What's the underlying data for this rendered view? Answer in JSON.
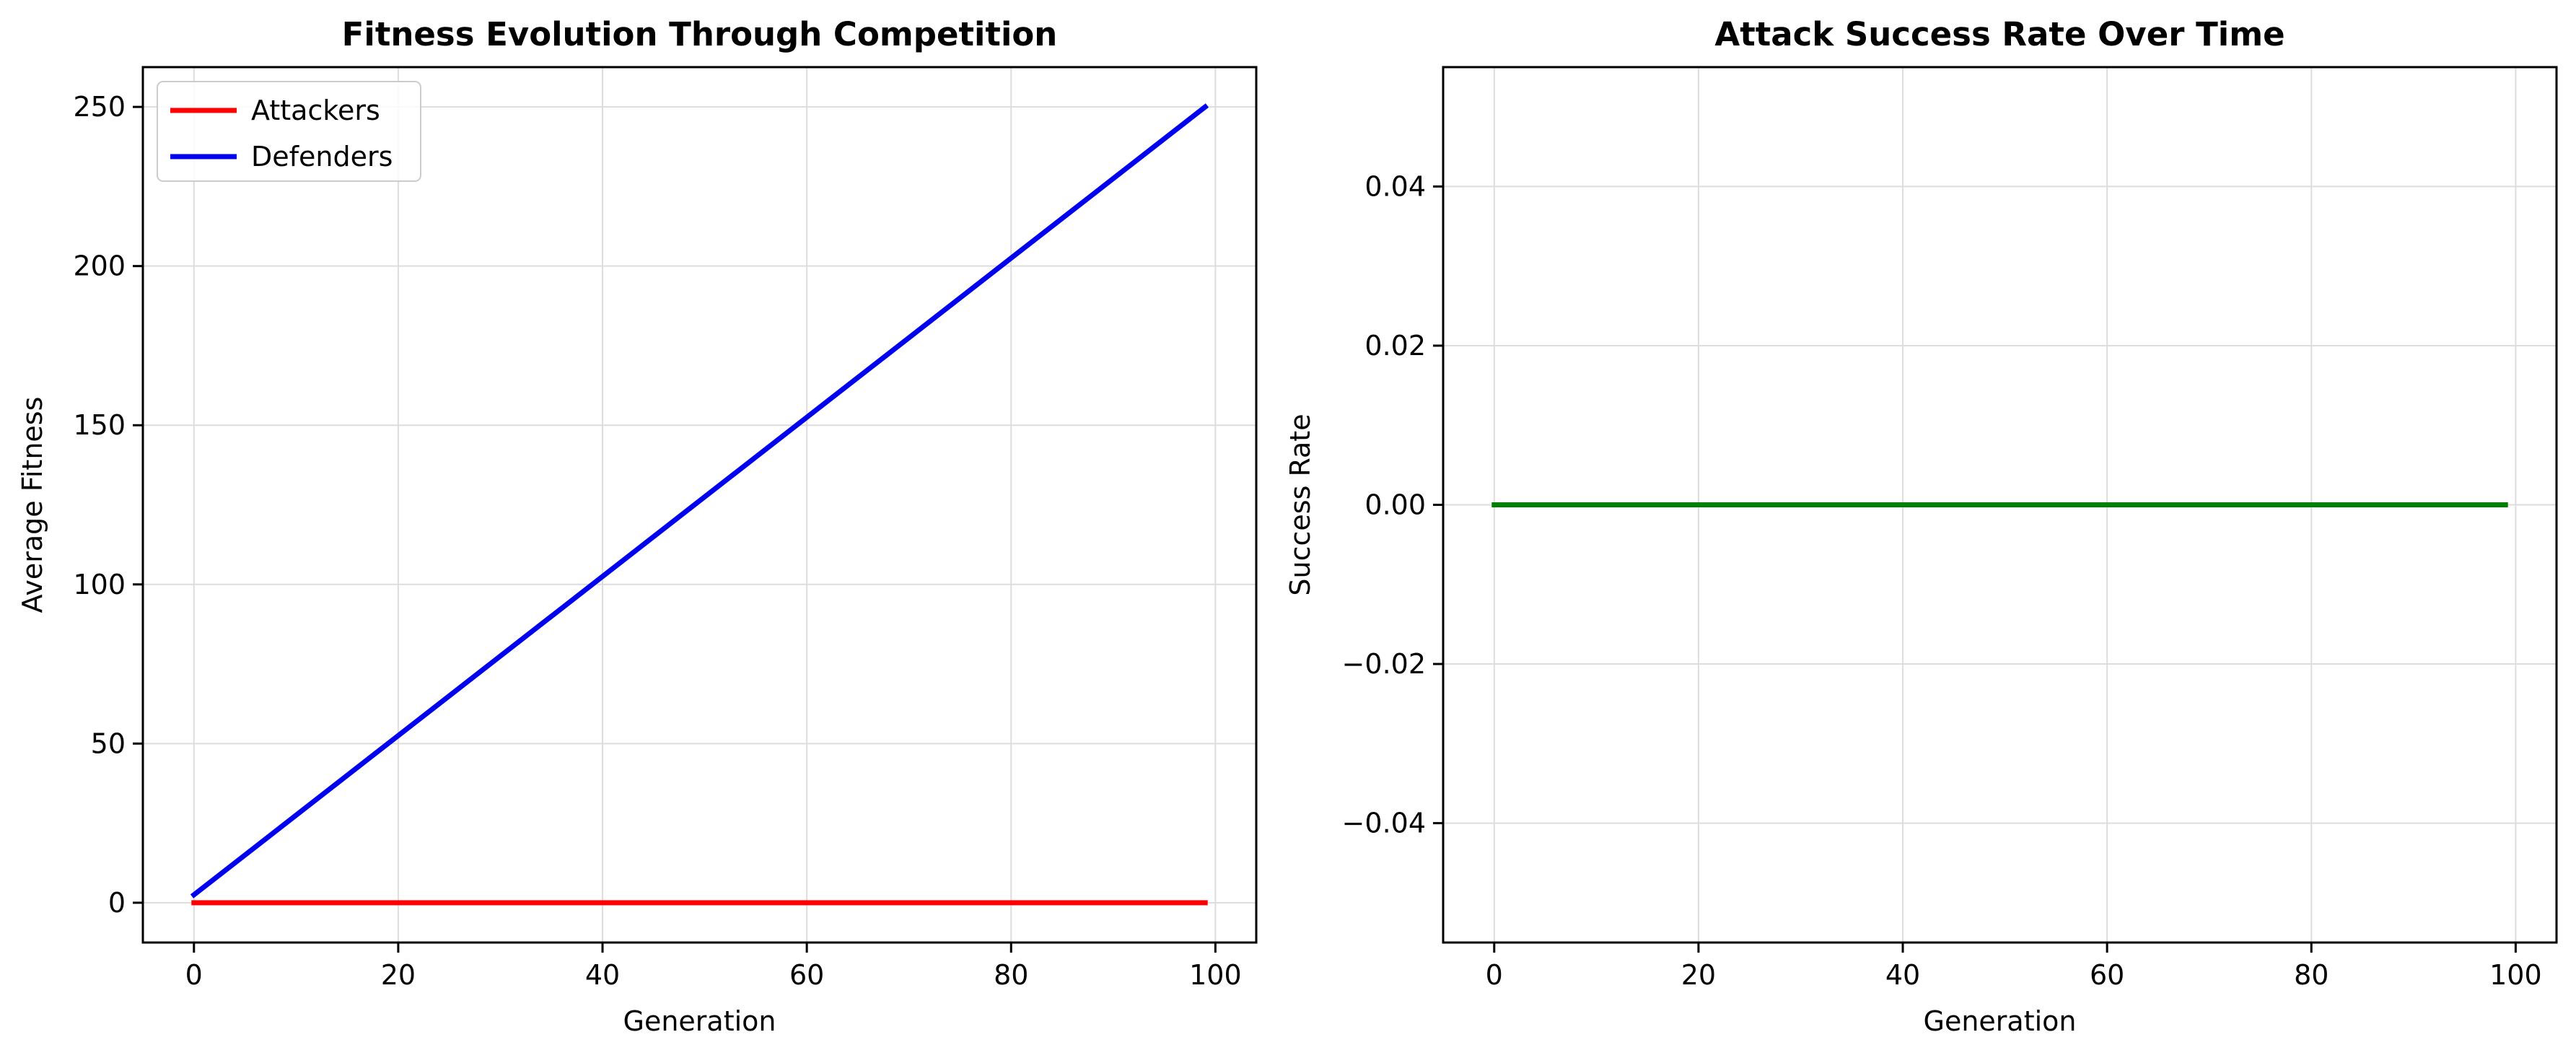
{
  "chart_data": [
    {
      "type": "line",
      "title": "Fitness Evolution Through Competition",
      "xlabel": "Generation",
      "ylabel": "Average Fitness",
      "xlim": [
        -5,
        104
      ],
      "ylim": [
        -12.5,
        262.5
      ],
      "xticks": [
        0,
        20,
        40,
        60,
        80,
        100
      ],
      "yticks": [
        0,
        50,
        100,
        150,
        200,
        250
      ],
      "xtick_labels": [
        "0",
        "20",
        "40",
        "60",
        "80",
        "100"
      ],
      "ytick_labels": [
        "0",
        "50",
        "100",
        "150",
        "200",
        "250"
      ],
      "grid": true,
      "legend": "top-left",
      "series": [
        {
          "name": "Attackers",
          "color": "#ff0000",
          "x": [
            0,
            99
          ],
          "y": [
            0,
            0
          ]
        },
        {
          "name": "Defenders",
          "color": "#0000ee",
          "x": [
            0,
            99
          ],
          "y": [
            2.5,
            250
          ]
        }
      ]
    },
    {
      "type": "line",
      "title": "Attack Success Rate Over Time",
      "xlabel": "Generation",
      "ylabel": "Success Rate",
      "xlim": [
        -5,
        104
      ],
      "ylim": [
        -0.055,
        0.055
      ],
      "xticks": [
        0,
        20,
        40,
        60,
        80,
        100
      ],
      "yticks": [
        -0.04,
        -0.02,
        0.0,
        0.02,
        0.04
      ],
      "xtick_labels": [
        "0",
        "20",
        "40",
        "60",
        "80",
        "100"
      ],
      "ytick_labels": [
        "−0.04",
        "−0.02",
        "0.00",
        "0.02",
        "0.04"
      ],
      "grid": true,
      "series": [
        {
          "color": "#008000",
          "x": [
            0,
            99
          ],
          "y": [
            0,
            0
          ]
        }
      ]
    }
  ]
}
